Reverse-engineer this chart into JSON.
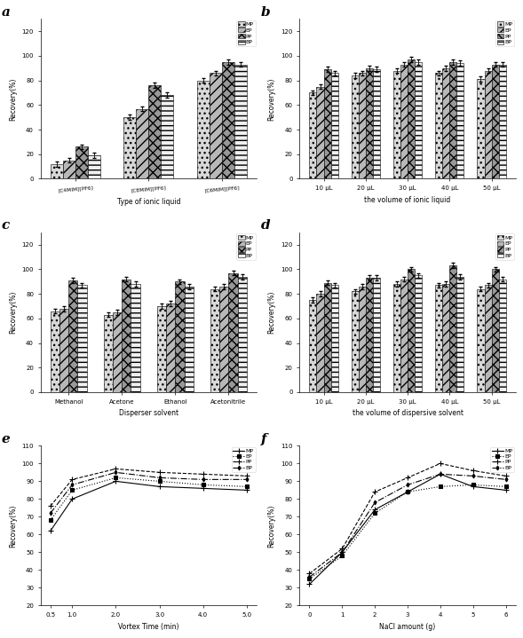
{
  "panel_a": {
    "title": "a",
    "xlabel": "Type of ionic liquid",
    "ylabel": "Recovery(%)",
    "categories": [
      "[C4MIM][PF6]",
      "[C8MIM][PF6]",
      "[C6MIM][PF6]"
    ],
    "MP": [
      12,
      50,
      80
    ],
    "EP": [
      15,
      57,
      86
    ],
    "PP": [
      26,
      76,
      95
    ],
    "BP": [
      19,
      68,
      93
    ],
    "ylim": [
      0,
      130
    ]
  },
  "panel_b": {
    "title": "b",
    "xlabel": "the volume of ionic liquid",
    "ylabel": "Recovery(%)",
    "categories": [
      "10 μL",
      "20 μL",
      "30 μL",
      "40 μL",
      "50 μL"
    ],
    "MP": [
      70,
      84,
      88,
      86,
      81
    ],
    "EP": [
      75,
      86,
      93,
      90,
      88
    ],
    "PP": [
      89,
      90,
      97,
      95,
      93
    ],
    "BP": [
      86,
      89,
      95,
      94,
      93
    ],
    "ylim": [
      0,
      130
    ]
  },
  "panel_c": {
    "title": "c",
    "xlabel": "Disperser solvent",
    "ylabel": "Recovery(%)",
    "categories": [
      "Methanol",
      "Acetone",
      "Ethanol",
      "Acetonitrile"
    ],
    "MP": [
      66,
      63,
      70,
      84
    ],
    "EP": [
      68,
      65,
      72,
      86
    ],
    "PP": [
      91,
      92,
      90,
      97
    ],
    "BP": [
      87,
      88,
      86,
      94
    ],
    "ylim": [
      0,
      130
    ]
  },
  "panel_d": {
    "title": "d",
    "xlabel": "the volume of dispersive solvent",
    "ylabel": "Recovery(%)",
    "categories": [
      "10 μL",
      "20 μL",
      "30 μL",
      "40 μL",
      "50 μL"
    ],
    "MP": [
      75,
      82,
      88,
      87,
      84
    ],
    "EP": [
      80,
      86,
      92,
      88,
      87
    ],
    "PP": [
      89,
      93,
      100,
      103,
      100
    ],
    "BP": [
      87,
      93,
      95,
      94,
      92
    ],
    "ylim": [
      0,
      130
    ]
  },
  "panel_e": {
    "title": "e",
    "xlabel": "Vortex Time (min)",
    "ylabel": "Recovery(%)",
    "x": [
      0.5,
      1,
      2,
      3,
      4,
      5
    ],
    "MP": [
      62,
      80,
      90,
      87,
      86,
      85
    ],
    "EP": [
      68,
      85,
      92,
      90,
      88,
      87
    ],
    "PP": [
      76,
      91,
      97,
      95,
      94,
      93
    ],
    "BP": [
      72,
      88,
      95,
      92,
      91,
      91
    ],
    "ylim": [
      20,
      110
    ],
    "yticks": [
      20,
      30,
      40,
      50,
      60,
      70,
      80,
      90,
      100,
      110
    ]
  },
  "panel_f": {
    "title": "f",
    "xlabel": "NaCl amount (g)",
    "ylabel": "Recovery(%)",
    "x": [
      0,
      1,
      2,
      3,
      4,
      5,
      6
    ],
    "MP": [
      32,
      50,
      74,
      84,
      94,
      87,
      85
    ],
    "EP": [
      35,
      48,
      72,
      84,
      87,
      88,
      87
    ],
    "PP": [
      38,
      52,
      84,
      92,
      100,
      96,
      93
    ],
    "BP": [
      36,
      50,
      78,
      88,
      94,
      93,
      91
    ],
    "ylim": [
      20,
      110
    ],
    "yticks": [
      20,
      30,
      40,
      50,
      60,
      70,
      80,
      90,
      100,
      110
    ]
  },
  "legend_labels": [
    "MP",
    "EP",
    "PP",
    "BP"
  ]
}
